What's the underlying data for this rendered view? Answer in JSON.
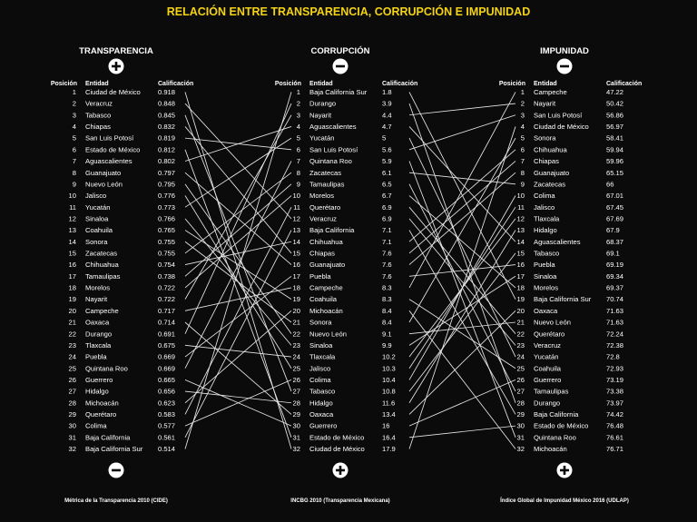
{
  "title": "RELACIÓN ENTRE TRANSPARENCIA, CORRUPCIÓN E IMPUNIDAD",
  "column_headers": {
    "position": "Posición",
    "entity": "Entidad",
    "score": "Calificación"
  },
  "colors": {
    "background": "#0b0b0b",
    "title": "#f3d313",
    "text": "#ffffff",
    "lines": "#e6e6e6"
  },
  "chart_data": {
    "type": "table",
    "panels": [
      {
        "id": "transparencia",
        "title": "TRANSPARENCIA",
        "top_sign": "+",
        "bottom_sign": "−",
        "source": "Métrica de la Transparencia 2010 (CIDE)",
        "entities": [
          "Ciudad de México",
          "Veracruz",
          "Tabasco",
          "Chiapas",
          "San Luis Potosí",
          "Estado de México",
          "Aguascalientes",
          "Guanajuato",
          "Nuevo León",
          "Jalisco",
          "Yucatán",
          "Sinaloa",
          "Coahuila",
          "Sonora",
          "Zacatecas",
          "Chihuahua",
          "Tamaulipas",
          "Morelos",
          "Nayarit",
          "Campeche",
          "Oaxaca",
          "Durango",
          "Tlaxcala",
          "Puebla",
          "Quintana Roo",
          "Guerrero",
          "Hidalgo",
          "Michoacán",
          "Querétaro",
          "Colima",
          "Baja California",
          "Baja California Sur"
        ],
        "scores": [
          "0.918",
          "0.848",
          "0.845",
          "0.832",
          "0.819",
          "0.812",
          "0.802",
          "0.797",
          "0.795",
          "0.776",
          "0.773",
          "0.766",
          "0.765",
          "0.755",
          "0.755",
          "0.754",
          "0.738",
          "0.722",
          "0.722",
          "0.717",
          "0.714",
          "0.691",
          "0.675",
          "0.669",
          "0.669",
          "0.665",
          "0.656",
          "0.623",
          "0.583",
          "0.577",
          "0.561",
          "0.514"
        ]
      },
      {
        "id": "corrupcion",
        "title": "CORRUPCIÓN",
        "top_sign": "−",
        "bottom_sign": "+",
        "source": "INCBG 2010 (Transparencia Mexicana)",
        "entities": [
          "Baja California Sur",
          "Durango",
          "Nayarit",
          "Aguascalientes",
          "Yucatán",
          "San Luis Potosí",
          "Quintana Roo",
          "Zacatecas",
          "Tamaulipas",
          "Morelos",
          "Querétaro",
          "Veracruz",
          "Baja California",
          "Chihuahua",
          "Chiapas",
          "Guanajuato",
          "Puebla",
          "Campeche",
          "Coahuila",
          "Michoacán",
          "Sonora",
          "Nuevo León",
          "Sinaloa",
          "Tlaxcala",
          "Jalisco",
          "Colima",
          "Tabasco",
          "Hidalgo",
          "Oaxaca",
          "Guerrero",
          "Estado de México",
          "Ciudad de México"
        ],
        "scores": [
          "1.8",
          "3.9",
          "4.4",
          "4.7",
          "5",
          "5.6",
          "5.9",
          "6.1",
          "6.5",
          "6.7",
          "6.9",
          "6.9",
          "7.1",
          "7.1",
          "7.6",
          "7.6",
          "7.6",
          "8.3",
          "8.3",
          "8.4",
          "8.4",
          "9.1",
          "9.9",
          "10.2",
          "10.3",
          "10.4",
          "10.8",
          "11.6",
          "13.4",
          "16",
          "16.4",
          "17.9"
        ]
      },
      {
        "id": "impunidad",
        "title": "IMPUNIDAD",
        "top_sign": "−",
        "bottom_sign": "+",
        "source": "Índice Global de Impunidad México 2016 (UDLAP)",
        "entities": [
          "Campeche",
          "Nayarit",
          "San Luis Potosí",
          "Ciudad de México",
          "Sonora",
          "Chihuahua",
          "Chiapas",
          "Guanajuato",
          "Zacatecas",
          "Colima",
          "Jalisco",
          "Tlaxcala",
          "Hidalgo",
          "Aguascalientes",
          "Tabasco",
          "Puebla",
          "Sinaloa",
          "Morelos",
          "Baja California Sur",
          "Oaxaca",
          "Nuevo León",
          "Querétaro",
          "Veracruz",
          "Yucatán",
          "Coahuila",
          "Guerrero",
          "Tamaulipas",
          "Durango",
          "Baja California",
          "Estado de México",
          "Quintana Roo",
          "Michoacán"
        ],
        "scores": [
          "47.22",
          "50.42",
          "56.86",
          "56.97",
          "58.41",
          "59.94",
          "59.96",
          "65.15",
          "66",
          "67.01",
          "67.45",
          "67.69",
          "67.9",
          "68.37",
          "69.1",
          "69.19",
          "69.34",
          "69.37",
          "70.74",
          "71.63",
          "71.63",
          "72.24",
          "72.38",
          "72.8",
          "72.93",
          "73.19",
          "73.38",
          "73.97",
          "74.42",
          "76.48",
          "76.61",
          "76.71"
        ]
      }
    ]
  }
}
